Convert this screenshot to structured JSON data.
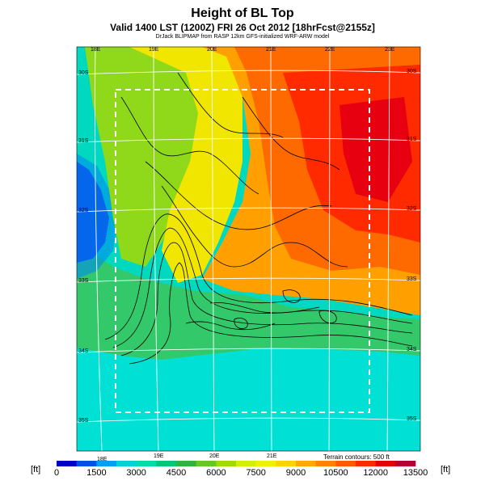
{
  "header": {
    "title": "Height of BL Top",
    "subtitle": "Valid 1400 LST (1200Z) FRI 26 Oct 2012 [18hrFcst@2155z]",
    "credit": "DrJack BLIPMAP from RASP 12km GFS-initialized WRF-ARW model"
  },
  "map": {
    "lon_top": [
      "18E",
      "19E",
      "20E",
      "21E",
      "22E",
      "23E"
    ],
    "lon_bottom": [
      "18E",
      "19E",
      "20E",
      "21E"
    ],
    "lat_left": [
      "30S",
      "31S",
      "32S",
      "33S",
      "34S",
      "35S"
    ],
    "lat_right": [
      "30S",
      "31S",
      "32S",
      "33S",
      "34S",
      "35S"
    ],
    "terrain_note": "Terrain contours: 500 ft"
  },
  "colorbar": {
    "unit_left": "[ft]",
    "unit_right": "[ft]",
    "labels": [
      "0",
      "1500",
      "3000",
      "4500",
      "6000",
      "7500",
      "9000",
      "10500",
      "12000",
      "13500"
    ],
    "colors": [
      "#0000c8",
      "#0050e6",
      "#00a0f0",
      "#00d2dc",
      "#00dcaa",
      "#00c878",
      "#32b43c",
      "#64c828",
      "#a0dc00",
      "#d2f000",
      "#f0f000",
      "#ffd200",
      "#ffaa00",
      "#ff8200",
      "#ff5a00",
      "#ff2800",
      "#e60000",
      "#b40032"
    ]
  }
}
